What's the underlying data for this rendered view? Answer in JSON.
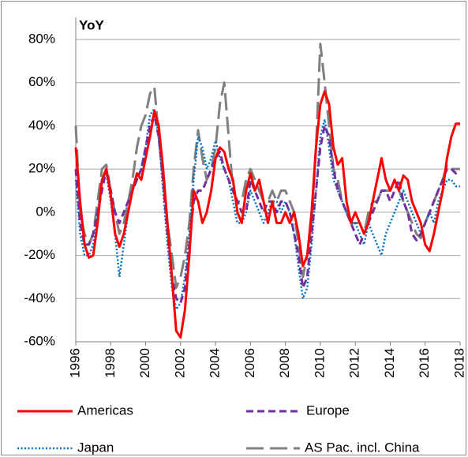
{
  "chart_data": {
    "type": "line",
    "title": "YoY",
    "x": [
      1996,
      1996.25,
      1996.5,
      1996.75,
      1997,
      1997.25,
      1997.5,
      1997.75,
      1998,
      1998.25,
      1998.5,
      1998.75,
      1999,
      1999.25,
      1999.5,
      1999.75,
      2000,
      2000.25,
      2000.5,
      2000.75,
      2001,
      2001.25,
      2001.5,
      2001.75,
      2002,
      2002.25,
      2002.5,
      2002.75,
      2003,
      2003.25,
      2003.5,
      2003.75,
      2004,
      2004.25,
      2004.5,
      2004.75,
      2005,
      2005.25,
      2005.5,
      2005.75,
      2006,
      2006.25,
      2006.5,
      2006.75,
      2007,
      2007.25,
      2007.5,
      2007.75,
      2008,
      2008.25,
      2008.5,
      2008.75,
      2009,
      2009.25,
      2009.5,
      2009.75,
      2010,
      2010.25,
      2010.5,
      2010.75,
      2011,
      2011.25,
      2011.5,
      2011.75,
      2012,
      2012.25,
      2012.5,
      2012.75,
      2013,
      2013.25,
      2013.5,
      2013.75,
      2014,
      2014.25,
      2014.5,
      2014.75,
      2015,
      2015.25,
      2015.5,
      2015.75,
      2016,
      2016.25,
      2016.5,
      2016.75,
      2017,
      2017.25,
      2017.5,
      2017.75,
      2018
    ],
    "series": [
      {
        "name": "Americas",
        "color": "#ff0000",
        "dash": "solid",
        "values": [
          30,
          5,
          -15,
          -21,
          -20,
          -5,
          15,
          20,
          8,
          -10,
          -16,
          -10,
          0,
          10,
          18,
          15,
          25,
          35,
          47,
          40,
          20,
          -5,
          -30,
          -55,
          -58,
          -45,
          -20,
          10,
          5,
          -5,
          0,
          10,
          25,
          30,
          28,
          20,
          15,
          0,
          -5,
          10,
          18,
          10,
          15,
          5,
          -5,
          5,
          -5,
          -5,
          0,
          -5,
          0,
          -10,
          -25,
          -20,
          0,
          30,
          50,
          56,
          50,
          30,
          22,
          25,
          5,
          -5,
          0,
          -5,
          -10,
          -5,
          5,
          15,
          25,
          15,
          10,
          15,
          10,
          17,
          15,
          5,
          0,
          -5,
          -15,
          -18,
          -10,
          0,
          10,
          25,
          35,
          41,
          41
        ]
      },
      {
        "name": "Europe",
        "color": "#7030a0",
        "dash": "dashed",
        "values": [
          20,
          -5,
          -15,
          -15,
          -10,
          0,
          10,
          20,
          10,
          0,
          -5,
          0,
          5,
          10,
          15,
          20,
          30,
          40,
          45,
          35,
          15,
          -10,
          -30,
          -40,
          -42,
          -35,
          -15,
          5,
          10,
          10,
          15,
          20,
          25,
          28,
          20,
          15,
          10,
          5,
          0,
          0,
          15,
          10,
          5,
          0,
          5,
          5,
          0,
          5,
          5,
          0,
          -10,
          -20,
          -35,
          -30,
          -10,
          10,
          30,
          40,
          35,
          20,
          10,
          5,
          0,
          -5,
          -10,
          -15,
          -10,
          -5,
          0,
          5,
          10,
          10,
          5,
          10,
          15,
          5,
          0,
          -10,
          -13,
          -10,
          -5,
          0,
          5,
          10,
          15,
          20,
          20,
          18,
          19
        ]
      },
      {
        "name": "Japan",
        "color": "#0070c0",
        "dash": "dotted",
        "values": [
          15,
          -10,
          -20,
          -20,
          -15,
          0,
          15,
          18,
          5,
          -10,
          -30,
          -15,
          0,
          10,
          15,
          20,
          30,
          45,
          48,
          35,
          10,
          -15,
          -35,
          -45,
          -42,
          -30,
          -10,
          15,
          35,
          30,
          20,
          25,
          33,
          25,
          20,
          15,
          5,
          -5,
          -5,
          0,
          10,
          5,
          0,
          -5,
          0,
          5,
          5,
          0,
          5,
          0,
          -10,
          -25,
          -40,
          -35,
          -15,
          10,
          35,
          43,
          30,
          15,
          10,
          5,
          0,
          -5,
          -5,
          -10,
          -15,
          -5,
          -10,
          -15,
          -20,
          -10,
          -5,
          0,
          5,
          10,
          5,
          0,
          -5,
          -10,
          -5,
          0,
          -5,
          5,
          10,
          15,
          15,
          12,
          12
        ]
      },
      {
        "name": "AS Pac. incl. China",
        "color": "#808080",
        "dash": "longdash",
        "values": [
          40,
          0,
          -10,
          -15,
          -10,
          5,
          20,
          22,
          10,
          0,
          -10,
          -5,
          5,
          15,
          30,
          40,
          45,
          55,
          58,
          35,
          15,
          -5,
          -20,
          -35,
          -30,
          -20,
          -5,
          20,
          38,
          25,
          15,
          20,
          30,
          50,
          60,
          35,
          10,
          5,
          5,
          15,
          20,
          15,
          10,
          5,
          5,
          10,
          5,
          10,
          10,
          5,
          0,
          -15,
          -30,
          -20,
          -5,
          30,
          78,
          60,
          40,
          20,
          15,
          5,
          0,
          -5,
          -5,
          -5,
          -10,
          0,
          5,
          5,
          10,
          10,
          10,
          15,
          10,
          5,
          0,
          -5,
          -10,
          -12,
          -5,
          0,
          5,
          10,
          15,
          22,
          20,
          20,
          20
        ]
      }
    ],
    "xlim": [
      1996,
      2018
    ],
    "xticks": [
      1996,
      1998,
      2000,
      2002,
      2004,
      2006,
      2008,
      2010,
      2012,
      2014,
      2016,
      2018
    ],
    "ylim": [
      -60,
      80
    ],
    "yticks": [
      {
        "value": -60,
        "label": "-60%"
      },
      {
        "value": -40,
        "label": "-40%"
      },
      {
        "value": -20,
        "label": "-20%"
      },
      {
        "value": 0,
        "label": "0%"
      },
      {
        "value": 20,
        "label": "20%"
      },
      {
        "value": 40,
        "label": "40%"
      },
      {
        "value": 60,
        "label": "60%"
      },
      {
        "value": 80,
        "label": "80%"
      }
    ],
    "grid": true
  }
}
